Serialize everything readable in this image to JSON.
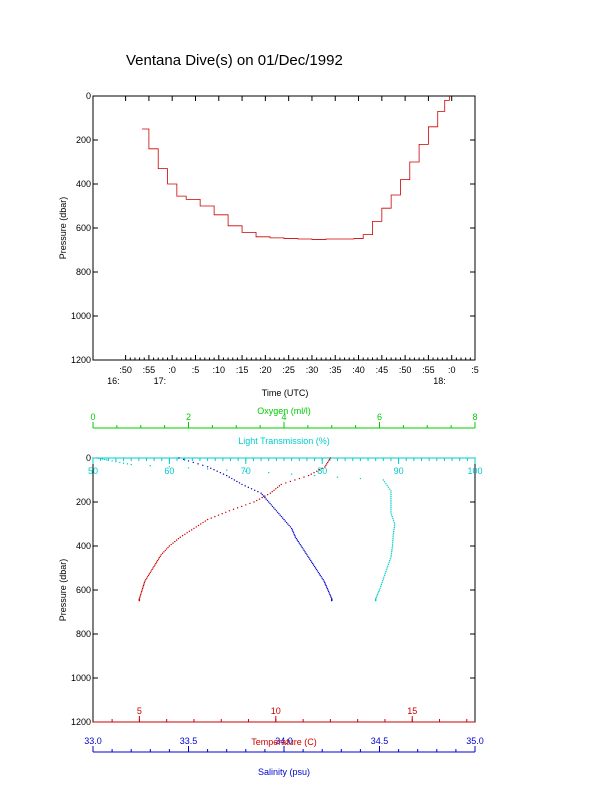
{
  "chart_data": [
    {
      "type": "line",
      "title": "Ventana Dive(s) on 01/Dec/1992",
      "xlabel": "Time (UTC)",
      "ylabel": "Pressure (dbar)",
      "ylim": [
        1200,
        0
      ],
      "x_range_minutes_after_1600": [
        43,
        125
      ],
      "x_ticks": [
        {
          "label": ":50",
          "sub": "16:"
        },
        {
          "label": ":55",
          "sub": ""
        },
        {
          "label": ":0",
          "sub": "17:"
        },
        {
          "label": ":5",
          "sub": ""
        },
        {
          "label": ":10",
          "sub": ""
        },
        {
          "label": ":15",
          "sub": ""
        },
        {
          "label": ":20",
          "sub": ""
        },
        {
          "label": ":25",
          "sub": ""
        },
        {
          "label": ":30",
          "sub": ""
        },
        {
          "label": ":35",
          "sub": ""
        },
        {
          "label": ":40",
          "sub": ""
        },
        {
          "label": ":45",
          "sub": ""
        },
        {
          "label": ":50",
          "sub": ""
        },
        {
          "label": ":55",
          "sub": ""
        },
        {
          "label": ":0",
          "sub": "18:"
        },
        {
          "label": ":5",
          "sub": ""
        }
      ],
      "y_ticks": [
        "0",
        "200",
        "400",
        "600",
        "800",
        "1000",
        "1200"
      ],
      "series": [
        {
          "color": "#cc0000",
          "x_time": [
            "16:53.5",
            "16:55",
            "16:57",
            "16:59",
            "17:01",
            "17:03",
            "17:06",
            "17:09",
            "17:12",
            "17:15",
            "17:18",
            "17:21",
            "17:24",
            "17:27",
            "17:30",
            "17:33",
            "17:36",
            "17:39",
            "17:41",
            "17:43",
            "17:45",
            "17:47",
            "17:49",
            "17:51",
            "17:53",
            "17:55",
            "17:57",
            "17:58.5",
            "17:59.5"
          ],
          "pressure_dbar": [
            150,
            240,
            330,
            400,
            455,
            470,
            500,
            540,
            590,
            620,
            640,
            645,
            648,
            650,
            652,
            650,
            650,
            648,
            630,
            570,
            510,
            450,
            380,
            300,
            220,
            140,
            70,
            20,
            0
          ]
        }
      ]
    },
    {
      "type": "scatter",
      "ylabel": "Pressure (dbar)",
      "ylim": [
        1200,
        0
      ],
      "y_ticks": [
        "0",
        "200",
        "400",
        "600",
        "800",
        "1000",
        "1200"
      ],
      "axes": {
        "oxygen": {
          "label": "Oxygen (ml/l)",
          "color": "#00cc00",
          "range": [
            0,
            8
          ],
          "ticks": [
            "0",
            "2",
            "4",
            "6",
            "8"
          ]
        },
        "light_transmission": {
          "label": "Light Transmission (%)",
          "color": "#00cccc",
          "range": [
            50,
            100
          ],
          "ticks": [
            "50",
            "60",
            "70",
            "80",
            "90",
            "100"
          ]
        },
        "temperature": {
          "label": "Temperature (C)",
          "color": "#cc0000",
          "range": [
            3.3,
            17.3
          ],
          "ticks": [
            "5",
            "10",
            "15"
          ]
        },
        "salinity": {
          "label": "Salinity (psu)",
          "color": "#0000cc",
          "range": [
            33.0,
            35.0
          ],
          "ticks": [
            "33.0",
            "33.5",
            "34.0",
            "34.5",
            "35.0"
          ]
        }
      },
      "series": [
        {
          "variable": "temperature",
          "color": "#cc0000",
          "pressure": [
            0,
            40,
            80,
            120,
            160,
            200,
            240,
            280,
            320,
            360,
            400,
            440,
            480,
            520,
            560,
            600,
            640,
            650
          ],
          "values": [
            12.0,
            11.8,
            11.2,
            10.2,
            9.8,
            9.2,
            8.3,
            7.5,
            7.0,
            6.5,
            6.1,
            5.8,
            5.6,
            5.4,
            5.2,
            5.1,
            5.0,
            5.0
          ]
        },
        {
          "variable": "salinity",
          "color": "#0000cc",
          "pressure": [
            0,
            40,
            80,
            120,
            160,
            200,
            240,
            280,
            320,
            360,
            400,
            440,
            480,
            520,
            560,
            600,
            640,
            650
          ],
          "values": [
            33.45,
            33.6,
            33.7,
            33.78,
            33.88,
            33.92,
            33.96,
            34.0,
            34.04,
            34.06,
            34.09,
            34.12,
            34.15,
            34.18,
            34.21,
            34.23,
            34.25,
            34.25
          ]
        },
        {
          "variable": "light_transmission",
          "color": "#00cccc",
          "pressure": [
            0,
            10,
            30,
            60,
            100,
            150,
            200,
            250,
            300,
            350,
            400,
            450,
            500,
            550,
            600,
            640,
            650
          ],
          "values": [
            50.5,
            52,
            55,
            70,
            88,
            89,
            89,
            89,
            89.5,
            89.3,
            89.2,
            89.0,
            88.5,
            88,
            87.5,
            87,
            87
          ]
        }
      ]
    }
  ]
}
